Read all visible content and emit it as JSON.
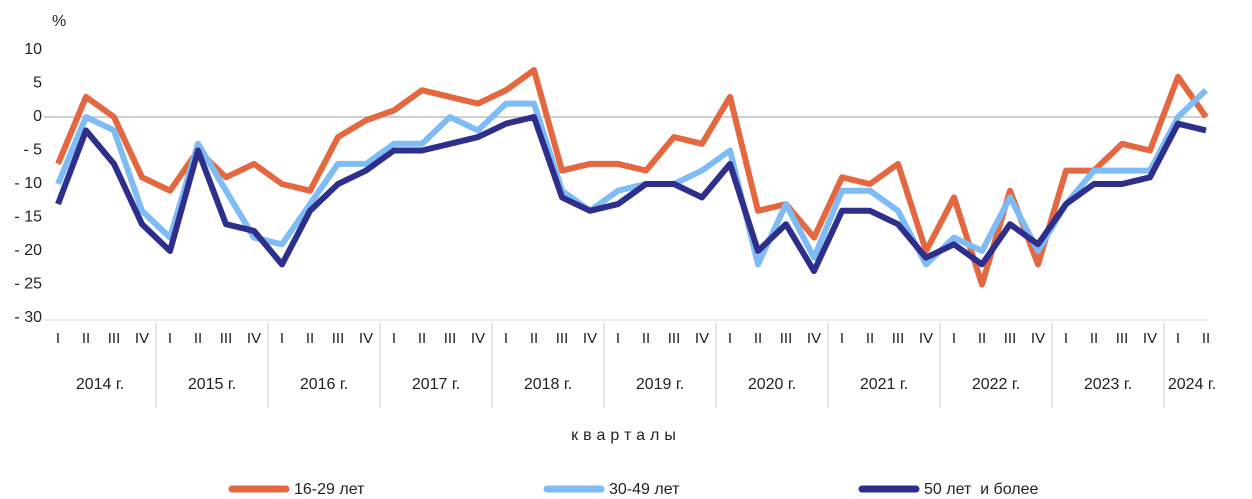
{
  "chart_data": {
    "type": "line",
    "y_axis_label": "%",
    "x_axis_label": "кварталы",
    "categories": [
      "I",
      "II",
      "III",
      "IV",
      "I",
      "II",
      "III",
      "IV",
      "I",
      "II",
      "III",
      "IV",
      "I",
      "II",
      "III",
      "IV",
      "I",
      "II",
      "III",
      "IV",
      "I",
      "II",
      "III",
      "IV",
      "I",
      "II",
      "III",
      "IV",
      "I",
      "II",
      "III",
      "IV",
      "I",
      "II",
      "III",
      "IV",
      "I",
      "II",
      "III",
      "IV",
      "I",
      "II"
    ],
    "years": [
      "2014 г.",
      "2015 г.",
      "2016 г.",
      "2017 г.",
      "2018 г.",
      "2019 г.",
      "2020 г.",
      "2021 г.",
      "2022 г.",
      "2023 г.",
      "2024 г."
    ],
    "series": [
      {
        "name": "16-29 лет",
        "color": "#e4673f",
        "values": [
          -7,
          3,
          0,
          -9,
          -11,
          -5,
          -9,
          -7,
          -10,
          -11,
          -3,
          -0.5,
          1,
          4,
          3,
          2,
          4,
          7,
          -8,
          -7,
          -7,
          -8,
          -3,
          -4,
          3,
          -14,
          -13,
          -18,
          -9,
          -10,
          -7,
          -20,
          -12,
          -25,
          -11,
          -22,
          -8,
          -8,
          -4,
          -5,
          6,
          0
        ]
      },
      {
        "name": "30-49 лет",
        "color": "#7ebcf5",
        "values": [
          -10,
          0,
          -2,
          -14,
          -18,
          -4,
          -11,
          -18,
          -19,
          -13,
          -7,
          -7,
          -4,
          -4,
          0,
          -2,
          2,
          2,
          -11,
          -14,
          -11,
          -10,
          -10,
          -8,
          -5,
          -22,
          -13,
          -21,
          -11,
          -11,
          -14,
          -22,
          -18,
          -20,
          -12,
          -20,
          -13,
          -8,
          -8,
          -8,
          0,
          4
        ]
      },
      {
        "name": "50 лет  и более",
        "color": "#2e2f8c",
        "values": [
          -13,
          -2,
          -7,
          -16,
          -20,
          -5,
          -16,
          -17,
          -22,
          -14,
          -10,
          -8,
          -5,
          -5,
          -4,
          -3,
          -1,
          0,
          -12,
          -14,
          -13,
          -10,
          -10,
          -12,
          -7,
          -20,
          -16,
          -23,
          -14,
          -14,
          -16,
          -21,
          -19,
          -22,
          -16,
          -19,
          -13,
          -10,
          -10,
          -9,
          -1,
          -2
        ]
      }
    ],
    "ylim": [
      -30,
      10
    ],
    "yticks": [
      10,
      5,
      0,
      {
        "value": -5,
        "label": "- 5"
      },
      {
        "value": -10,
        "label": "- 10"
      },
      {
        "value": -15,
        "label": "- 15"
      },
      {
        "value": -20,
        "label": "- 20"
      },
      {
        "value": -25,
        "label": "- 25"
      },
      {
        "value": -30,
        "label": "- 30"
      }
    ],
    "zero_line": true
  }
}
